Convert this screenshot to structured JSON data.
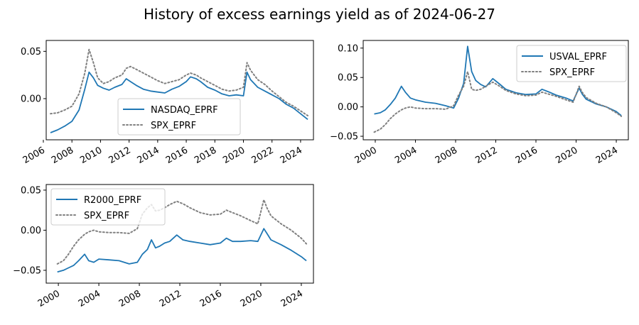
{
  "figure": {
    "title": "History of excess earnings yield as of 2024-06-27"
  },
  "colors": {
    "primary": "#1f77b4",
    "spx": "#808080"
  },
  "chart_data": [
    {
      "type": "line",
      "title": "",
      "xlim": [
        2006.2,
        2024.9
      ],
      "ylim": [
        -0.0435,
        0.0615
      ],
      "xticks": [
        2006,
        2008,
        2010,
        2012,
        2014,
        2016,
        2018,
        2020,
        2022,
        2024
      ],
      "yticks": [
        0.0,
        0.05
      ],
      "ytick_labels": [
        "0.00",
        "0.05"
      ],
      "legend": "center",
      "x": [
        2006.5,
        2007.0,
        2007.5,
        2008.0,
        2008.5,
        2008.9,
        2009.2,
        2009.5,
        2009.8,
        2010.2,
        2010.6,
        2011.0,
        2011.5,
        2011.8,
        2012.1,
        2012.5,
        2013.0,
        2013.5,
        2014.0,
        2014.5,
        2015.0,
        2015.5,
        2016.0,
        2016.3,
        2016.7,
        2017.0,
        2017.5,
        2018.0,
        2018.5,
        2019.0,
        2019.5,
        2020.0,
        2020.25,
        2020.5,
        2021.0,
        2021.5,
        2022.0,
        2022.5,
        2023.0,
        2023.5,
        2024.0,
        2024.5
      ],
      "series": [
        {
          "name": "NASDAQ_EPRF",
          "style": "solid",
          "values": [
            -0.036,
            -0.033,
            -0.029,
            -0.024,
            -0.012,
            0.01,
            0.028,
            0.022,
            0.014,
            0.011,
            0.009,
            0.012,
            0.015,
            0.021,
            0.018,
            0.014,
            0.01,
            0.008,
            0.007,
            0.006,
            0.01,
            0.013,
            0.018,
            0.023,
            0.021,
            0.018,
            0.012,
            0.009,
            0.005,
            0.003,
            0.004,
            0.003,
            0.028,
            0.02,
            0.012,
            0.008,
            0.004,
            0.0,
            -0.006,
            -0.01,
            -0.016,
            -0.022
          ]
        },
        {
          "name": "SPX_EPRF",
          "style": "dotted",
          "values": [
            -0.016,
            -0.015,
            -0.012,
            -0.008,
            0.005,
            0.027,
            0.052,
            0.038,
            0.022,
            0.016,
            0.018,
            0.022,
            0.025,
            0.032,
            0.034,
            0.031,
            0.027,
            0.023,
            0.019,
            0.016,
            0.018,
            0.02,
            0.025,
            0.027,
            0.025,
            0.022,
            0.018,
            0.014,
            0.01,
            0.008,
            0.009,
            0.012,
            0.038,
            0.03,
            0.02,
            0.015,
            0.008,
            0.002,
            -0.004,
            -0.008,
            -0.013,
            -0.018
          ]
        }
      ]
    },
    {
      "type": "line",
      "title": "",
      "xlim": [
        1998.8,
        2025.2
      ],
      "ylim": [
        -0.056,
        0.113
      ],
      "xticks": [
        2000,
        2004,
        2008,
        2012,
        2016,
        2020,
        2024
      ],
      "yticks": [
        -0.05,
        0.0,
        0.05,
        0.1
      ],
      "ytick_labels": [
        "−0.05",
        "0.00",
        "0.05",
        "0.10"
      ],
      "legend": "top-right",
      "x": [
        1999.9,
        2000.5,
        2001.0,
        2001.5,
        2002.0,
        2002.6,
        2003.0,
        2003.5,
        2004.0,
        2005.0,
        2006.0,
        2007.0,
        2007.8,
        2008.3,
        2008.8,
        2009.2,
        2009.6,
        2010.0,
        2010.5,
        2011.0,
        2011.7,
        2012.3,
        2013.0,
        2014.0,
        2015.0,
        2016.0,
        2016.6,
        2017.2,
        2018.0,
        2019.0,
        2019.7,
        2020.3,
        2020.6,
        2021.0,
        2022.0,
        2023.0,
        2024.0,
        2024.5
      ],
      "series": [
        {
          "name": "USVAL_EPRF",
          "style": "solid",
          "values": [
            -0.012,
            -0.01,
            -0.005,
            0.004,
            0.015,
            0.035,
            0.025,
            0.015,
            0.012,
            0.008,
            0.006,
            0.002,
            -0.002,
            0.015,
            0.04,
            0.103,
            0.06,
            0.045,
            0.038,
            0.034,
            0.048,
            0.04,
            0.03,
            0.024,
            0.021,
            0.022,
            0.03,
            0.026,
            0.02,
            0.015,
            0.01,
            0.032,
            0.022,
            0.013,
            0.005,
            0.0,
            -0.008,
            -0.015
          ]
        },
        {
          "name": "SPX_EPRF",
          "style": "dotted",
          "values": [
            -0.043,
            -0.038,
            -0.03,
            -0.02,
            -0.012,
            -0.005,
            -0.002,
            0.0,
            -0.002,
            -0.003,
            -0.003,
            -0.004,
            0.002,
            0.02,
            0.035,
            0.06,
            0.03,
            0.028,
            0.03,
            0.035,
            0.042,
            0.036,
            0.028,
            0.022,
            0.019,
            0.02,
            0.025,
            0.022,
            0.018,
            0.012,
            0.008,
            0.035,
            0.025,
            0.016,
            0.006,
            0.0,
            -0.01,
            -0.016
          ]
        }
      ]
    },
    {
      "type": "line",
      "title": "",
      "xlim": [
        1998.8,
        2025.2
      ],
      "ylim": [
        -0.066,
        0.057
      ],
      "xticks": [
        2000,
        2004,
        2008,
        2012,
        2016,
        2020,
        2024
      ],
      "yticks": [
        -0.05,
        0.0,
        0.05
      ],
      "ytick_labels": [
        "−0.05",
        "0.00",
        "0.05"
      ],
      "legend": "top-left",
      "x": [
        1999.9,
        2000.5,
        2001.0,
        2001.5,
        2002.0,
        2002.6,
        2003.0,
        2003.5,
        2004.0,
        2005.0,
        2006.0,
        2007.0,
        2007.8,
        2008.3,
        2008.8,
        2009.2,
        2009.6,
        2010.0,
        2010.5,
        2011.0,
        2011.7,
        2012.3,
        2013.0,
        2014.0,
        2015.0,
        2016.0,
        2016.6,
        2017.2,
        2018.0,
        2019.0,
        2019.7,
        2020.3,
        2020.6,
        2021.0,
        2022.0,
        2023.0,
        2024.0,
        2024.5
      ],
      "series": [
        {
          "name": "R2000_EPRF",
          "style": "solid",
          "values": [
            -0.052,
            -0.05,
            -0.047,
            -0.044,
            -0.038,
            -0.03,
            -0.038,
            -0.04,
            -0.036,
            -0.037,
            -0.038,
            -0.042,
            -0.04,
            -0.03,
            -0.024,
            -0.012,
            -0.022,
            -0.02,
            -0.016,
            -0.014,
            -0.006,
            -0.012,
            -0.014,
            -0.016,
            -0.018,
            -0.016,
            -0.01,
            -0.014,
            -0.014,
            -0.013,
            -0.014,
            0.002,
            -0.004,
            -0.012,
            -0.018,
            -0.025,
            -0.033,
            -0.038
          ]
        },
        {
          "name": "SPX_EPRF",
          "style": "dotted",
          "values": [
            -0.042,
            -0.038,
            -0.03,
            -0.02,
            -0.012,
            -0.005,
            -0.002,
            0.0,
            -0.002,
            -0.003,
            -0.003,
            -0.004,
            0.002,
            0.02,
            0.028,
            0.032,
            0.024,
            0.025,
            0.028,
            0.032,
            0.036,
            0.033,
            0.028,
            0.022,
            0.019,
            0.02,
            0.025,
            0.022,
            0.018,
            0.012,
            0.008,
            0.038,
            0.028,
            0.018,
            0.008,
            0.0,
            -0.01,
            -0.017
          ]
        }
      ]
    }
  ]
}
